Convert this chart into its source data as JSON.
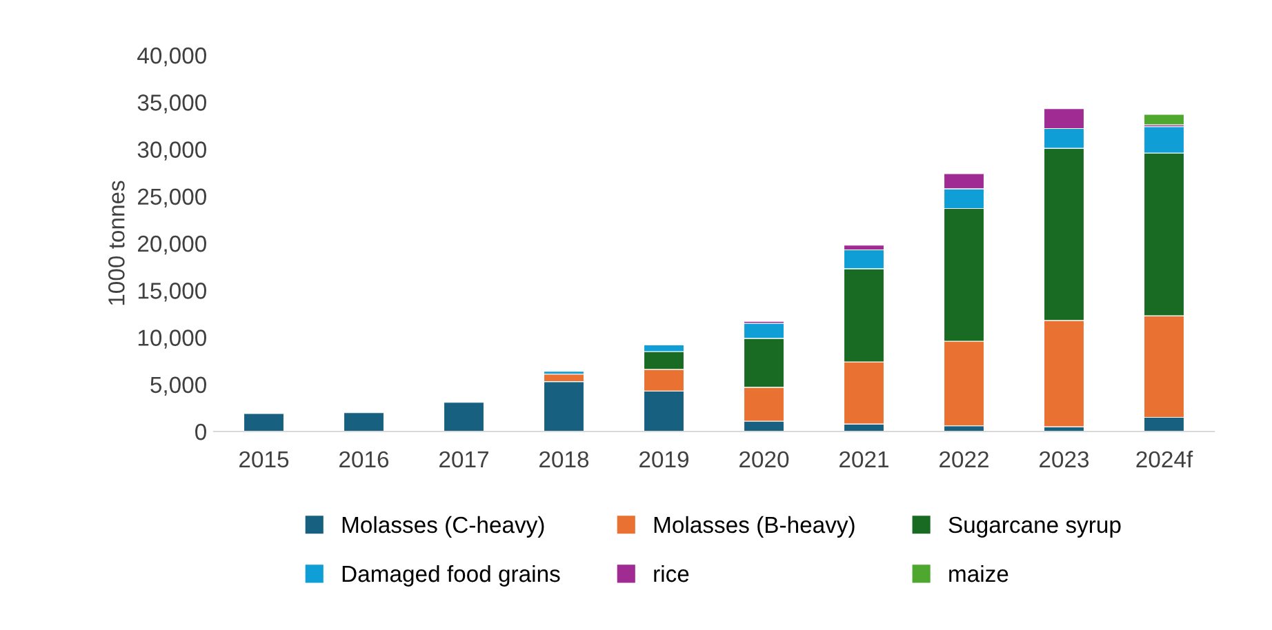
{
  "chart_data": {
    "type": "bar",
    "stacked": true,
    "ylabel": "1000 tonnes",
    "categories": [
      "2015",
      "2016",
      "2017",
      "2018",
      "2019",
      "2020",
      "2021",
      "2022",
      "2023",
      "2024f"
    ],
    "series": [
      {
        "name": "Molasses (C-heavy)",
        "color": "#17607f",
        "values": [
          1900,
          2000,
          3100,
          5300,
          4300,
          1100,
          800,
          600,
          500,
          1500
        ]
      },
      {
        "name": "Molasses (B-heavy)",
        "color": "#e97132",
        "values": [
          null,
          null,
          null,
          800,
          2300,
          3600,
          6600,
          9000,
          11300,
          10800
        ]
      },
      {
        "name": "Sugarcane syrup",
        "color": "#196b24",
        "values": [
          null,
          null,
          null,
          null,
          1900,
          5200,
          9900,
          14100,
          18300,
          17300
        ]
      },
      {
        "name": "Damaged food grains",
        "color": "#0f9ed5",
        "values": [
          null,
          null,
          null,
          300,
          700,
          1600,
          2000,
          2100,
          2100,
          2800
        ]
      },
      {
        "name": "rice",
        "color": "#a02b93",
        "values": [
          null,
          null,
          null,
          null,
          null,
          200,
          500,
          1600,
          2100,
          200
        ]
      },
      {
        "name": "maize",
        "color": "#4ea72e",
        "values": [
          null,
          null,
          null,
          null,
          null,
          null,
          null,
          null,
          null,
          1100
        ]
      }
    ],
    "ylim": [
      0,
      40000
    ],
    "yticks": [
      {
        "value": 0,
        "label": "0"
      },
      {
        "value": 5000,
        "label": "5,000"
      },
      {
        "value": 10000,
        "label": "10,000"
      },
      {
        "value": 15000,
        "label": "15,000"
      },
      {
        "value": 20000,
        "label": "20,000"
      },
      {
        "value": 25000,
        "label": "25,000"
      },
      {
        "value": 30000,
        "label": "30,000"
      },
      {
        "value": 35000,
        "label": "35,000"
      },
      {
        "value": 40000,
        "label": "40,000"
      }
    ],
    "grid": false,
    "legend": "bottom"
  }
}
